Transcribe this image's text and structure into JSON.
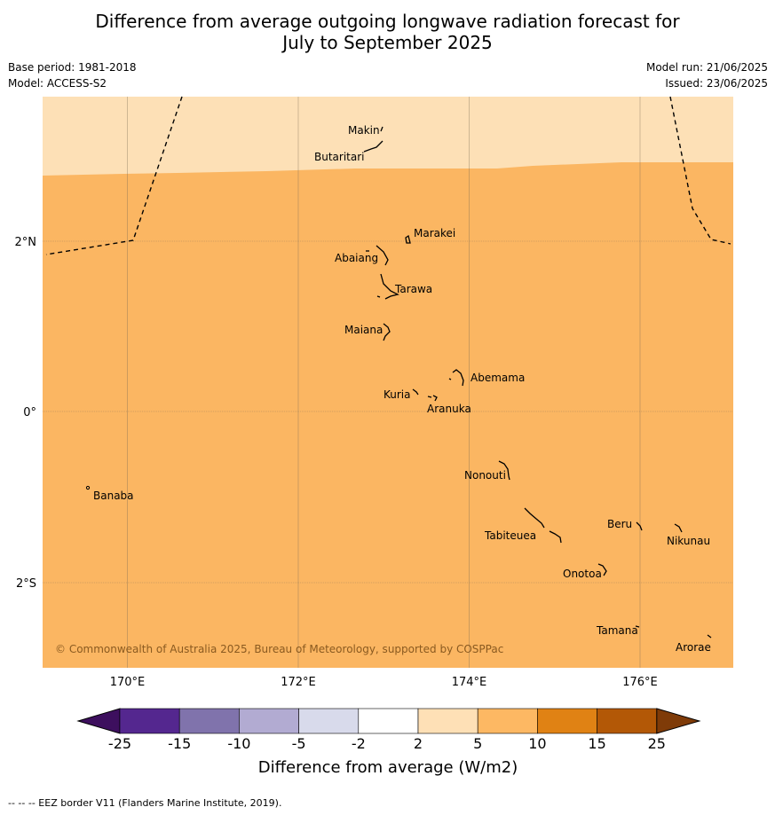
{
  "title_line1": "Difference from average outgoing longwave radiation forecast for",
  "title_line2": "July to September 2025",
  "meta": {
    "base_period": "Base period: 1981-2018",
    "model": "Model: ACCESS-S2",
    "model_run": "Model run: 21/06/2025",
    "issued": "Issued: 23/06/2025"
  },
  "map": {
    "lon_labels": [
      "170°E",
      "172°E",
      "174°E",
      "176°E"
    ],
    "lat_labels": [
      "2°N",
      "0°",
      "2°S"
    ],
    "places": [
      "Makin",
      "Butaritari",
      "Marakei",
      "Abaiang",
      "Tarawa",
      "Maiana",
      "Abemama",
      "Kuria",
      "Aranuka",
      "Nonouti",
      "Banaba",
      "Tabiteuea",
      "Beru",
      "Nikunau",
      "Onotoa",
      "Tamana",
      "Arorae"
    ],
    "copyright": "© Commonwealth of Australia 2025, Bureau of Meteorology, supported by COSPPac",
    "fill_colors": {
      "band_2_5": "#fde0b6",
      "band_5_10": "#fbb662"
    }
  },
  "colorbar": {
    "ticks": [
      "-25",
      "-15",
      "-10",
      "-5",
      "-2",
      "2",
      "5",
      "10",
      "15",
      "25"
    ],
    "colors": [
      "#3d0f5e",
      "#54278f",
      "#8073ac",
      "#b2abd2",
      "#d8daeb",
      "#ffffff",
      "#fee0b6",
      "#fdb863",
      "#e08214",
      "#b35806",
      "#7f3b08"
    ],
    "label": "Difference from average (W/m2)"
  },
  "footer": "--  --  -- EEZ border V11 (Flanders Marine Institute, 2019)."
}
